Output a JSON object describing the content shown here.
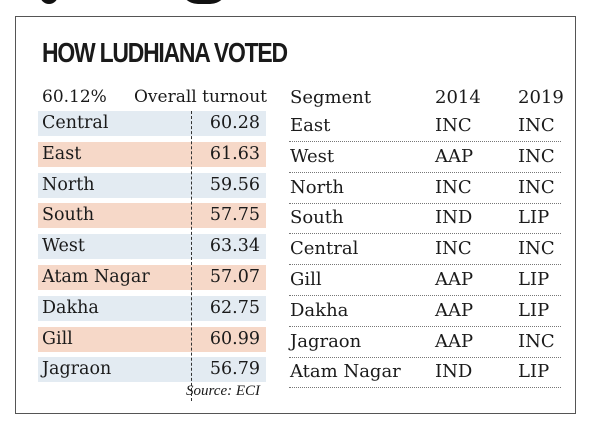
{
  "title": "HOW LUDHIANA VOTED",
  "chart_data": [
    {
      "type": "table",
      "title": "Turnout",
      "overall_value": "60.12%",
      "overall_label": "Overall turnout",
      "rows": [
        {
          "segment": "Central",
          "turnout": "60.28",
          "color": "#e3ebf2"
        },
        {
          "segment": "East",
          "turnout": "61.63",
          "color": "#f6d8c8"
        },
        {
          "segment": "North",
          "turnout": "59.56",
          "color": "#e3ebf2"
        },
        {
          "segment": "South",
          "turnout": "57.75",
          "color": "#f6d8c8"
        },
        {
          "segment": "West",
          "turnout": "63.34",
          "color": "#e3ebf2"
        },
        {
          "segment": "Atam Nagar",
          "turnout": "57.07",
          "color": "#f6d8c8"
        },
        {
          "segment": "Dakha",
          "turnout": "62.75",
          "color": "#e3ebf2"
        },
        {
          "segment": "Gill",
          "turnout": "60.99",
          "color": "#f6d8c8"
        },
        {
          "segment": "Jagraon",
          "turnout": "56.79",
          "color": "#e3ebf2"
        }
      ],
      "source": "Source: ECI"
    },
    {
      "type": "table",
      "columns": [
        "Segment",
        "2014",
        "2019"
      ],
      "rows": [
        [
          "East",
          "INC",
          "INC"
        ],
        [
          "West",
          "AAP",
          "INC"
        ],
        [
          "North",
          "INC",
          "INC"
        ],
        [
          "South",
          "IND",
          "LIP"
        ],
        [
          "Central",
          "INC",
          "INC"
        ],
        [
          "Gill",
          "AAP",
          "LIP"
        ],
        [
          "Dakha",
          "AAP",
          "LIP"
        ],
        [
          "Jagraon",
          "AAP",
          "INC"
        ],
        [
          "Atam Nagar",
          "IND",
          "LIP"
        ]
      ]
    }
  ]
}
